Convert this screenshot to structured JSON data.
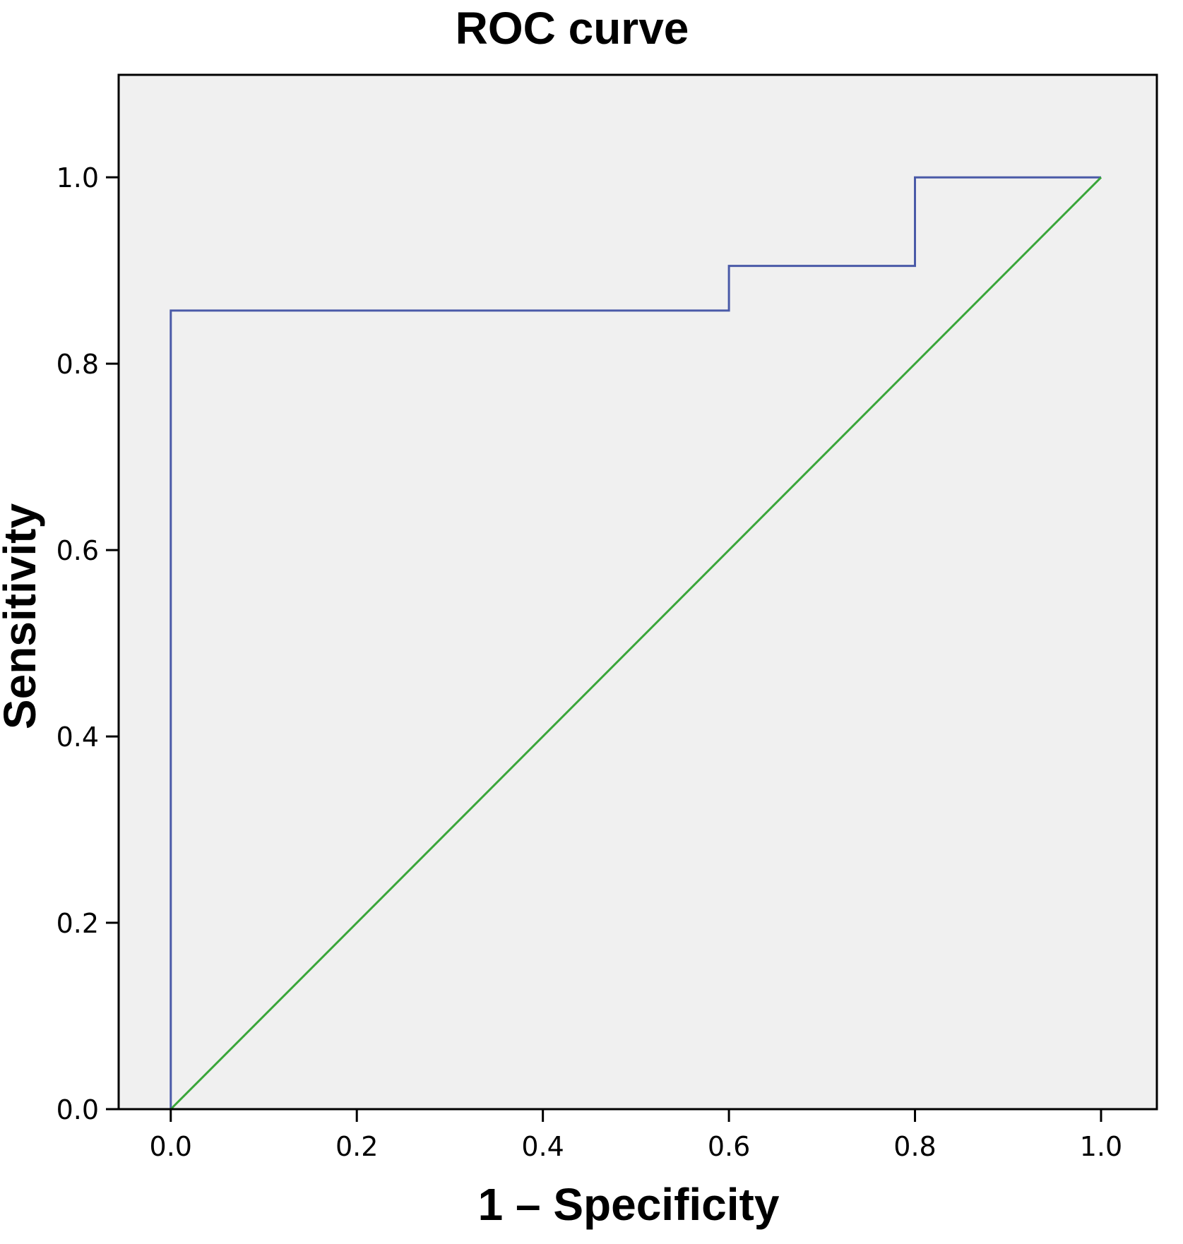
{
  "chart_data": {
    "type": "line",
    "title": "ROC curve",
    "xlabel": "1 – Specificity",
    "ylabel": "Sensitivity",
    "xlim": [
      -0.056,
      1.06
    ],
    "ylim": [
      0.0,
      1.11
    ],
    "x_ticks": [
      "0.0",
      "0.2",
      "0.4",
      "0.6",
      "0.8",
      "1.0"
    ],
    "y_ticks": [
      "0.0",
      "0.2",
      "0.4",
      "0.6",
      "0.8",
      "1.0"
    ],
    "grid": false,
    "legend": "none",
    "background_color": "#f0f0f0",
    "series": [
      {
        "style": "step",
        "color": "#4a5aa8",
        "x": [
          0.0,
          0.0,
          0.6,
          0.6,
          0.8,
          0.8,
          1.0
        ],
        "y": [
          0.0,
          0.857,
          0.857,
          0.905,
          0.905,
          1.0,
          1.0
        ]
      },
      {
        "style": "reference",
        "color": "#3aa63a",
        "x": [
          0.0,
          1.0
        ],
        "y": [
          0.0,
          1.0
        ]
      }
    ]
  }
}
